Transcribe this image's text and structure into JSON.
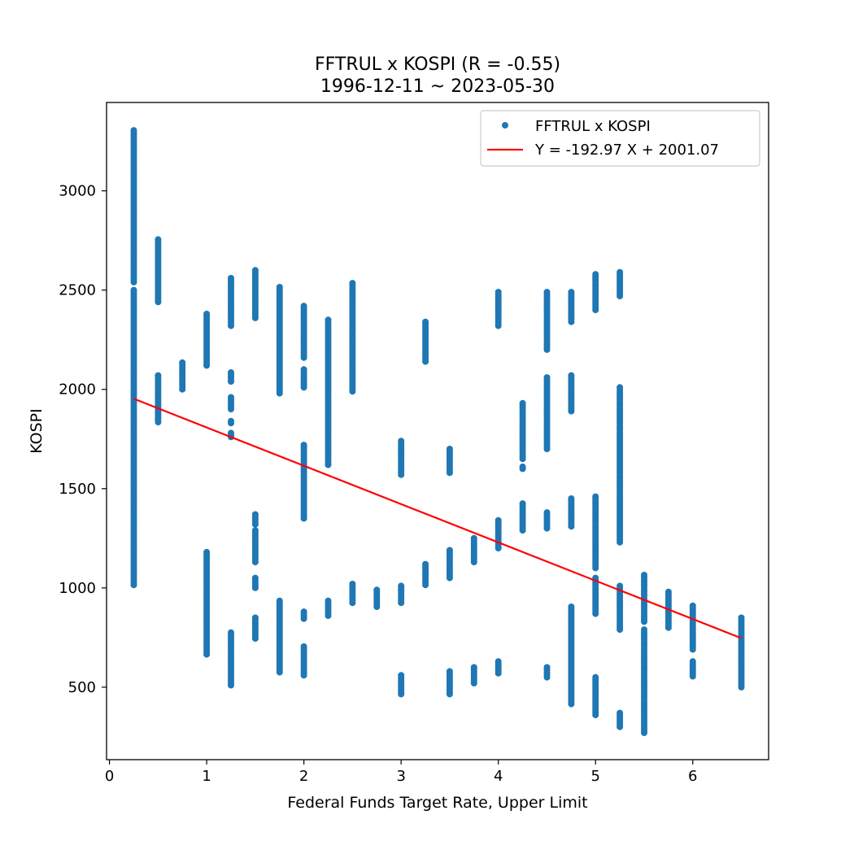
{
  "chart_data": {
    "type": "scatter",
    "title": "FFTRUL x KOSPI (R = -0.55)",
    "subtitle": "1996-12-11 ~ 2023-05-30",
    "xlabel": "Federal Funds Target Rate, Upper Limit",
    "ylabel": "KOSPI",
    "xlim": [
      -0.03,
      6.78
    ],
    "ylim": [
      135,
      3445
    ],
    "xticks": [
      0,
      1,
      2,
      3,
      4,
      5,
      6
    ],
    "yticks": [
      500,
      1000,
      1500,
      2000,
      2500,
      3000
    ],
    "legend": {
      "position": "top-right",
      "entries": [
        "FFTRUL x KOSPI",
        "Y = -192.97  X + 2001.07"
      ]
    },
    "colors": {
      "points": "#1f77b4",
      "fit": "#ff0000"
    },
    "series": [
      {
        "name": "FFTRUL x KOSPI",
        "kind": "points",
        "clusters": [
          {
            "x": 0.25,
            "y": [
              [
                1015,
                2500
              ],
              [
                2540,
                3305
              ]
            ]
          },
          {
            "x": 0.5,
            "y": [
              [
                1835,
                2070
              ],
              [
                2440,
                2755
              ]
            ]
          },
          {
            "x": 0.75,
            "y": [
              [
                2000,
                2135
              ]
            ]
          },
          {
            "x": 1.0,
            "y": [
              [
                665,
                1180
              ],
              [
                2120,
                2380
              ]
            ]
          },
          {
            "x": 1.25,
            "y": [
              [
                510,
                775
              ],
              [
                1760,
                1780
              ],
              [
                1830,
                1840
              ],
              [
                1900,
                1960
              ],
              [
                2040,
                2085
              ],
              [
                2320,
                2560
              ]
            ]
          },
          {
            "x": 1.5,
            "y": [
              [
                745,
                850
              ],
              [
                1000,
                1050
              ],
              [
                1130,
                1290
              ],
              [
                1320,
                1370
              ],
              [
                2360,
                2600
              ]
            ]
          },
          {
            "x": 1.75,
            "y": [
              [
                575,
                935
              ],
              [
                1980,
                2515
              ]
            ]
          },
          {
            "x": 2.0,
            "y": [
              [
                560,
                705
              ],
              [
                845,
                880
              ],
              [
                1350,
                1720
              ],
              [
                2010,
                2100
              ],
              [
                2160,
                2420
              ]
            ]
          },
          {
            "x": 2.25,
            "y": [
              [
                860,
                935
              ],
              [
                1620,
                2350
              ]
            ]
          },
          {
            "x": 2.5,
            "y": [
              [
                925,
                1020
              ],
              [
                1990,
                2535
              ]
            ]
          },
          {
            "x": 2.75,
            "y": [
              [
                905,
                990
              ]
            ]
          },
          {
            "x": 3.0,
            "y": [
              [
                465,
                560
              ],
              [
                925,
                1010
              ],
              [
                1570,
                1740
              ]
            ]
          },
          {
            "x": 3.25,
            "y": [
              [
                1015,
                1120
              ],
              [
                2140,
                2340
              ]
            ]
          },
          {
            "x": 3.5,
            "y": [
              [
                465,
                580
              ],
              [
                1050,
                1190
              ],
              [
                1580,
                1700
              ]
            ]
          },
          {
            "x": 3.75,
            "y": [
              [
                520,
                600
              ],
              [
                1130,
                1250
              ]
            ]
          },
          {
            "x": 4.0,
            "y": [
              [
                570,
                630
              ],
              [
                1200,
                1340
              ],
              [
                2320,
                2490
              ]
            ]
          },
          {
            "x": 4.25,
            "y": [
              [
                1290,
                1425
              ],
              [
                1600,
                1610
              ],
              [
                1650,
                1930
              ]
            ]
          },
          {
            "x": 4.5,
            "y": [
              [
                550,
                600
              ],
              [
                1300,
                1380
              ],
              [
                1700,
                2060
              ],
              [
                2200,
                2490
              ]
            ]
          },
          {
            "x": 4.75,
            "y": [
              [
                415,
                905
              ],
              [
                1310,
                1450
              ],
              [
                1890,
                2070
              ],
              [
                2340,
                2490
              ]
            ]
          },
          {
            "x": 5.0,
            "y": [
              [
                360,
                550
              ],
              [
                870,
                1050
              ],
              [
                1100,
                1460
              ],
              [
                2400,
                2580
              ]
            ]
          },
          {
            "x": 5.25,
            "y": [
              [
                300,
                370
              ],
              [
                790,
                1010
              ],
              [
                1230,
                2010
              ],
              [
                2470,
                2590
              ]
            ]
          },
          {
            "x": 5.5,
            "y": [
              [
                270,
                790
              ],
              [
                830,
                1065
              ]
            ]
          },
          {
            "x": 5.75,
            "y": [
              [
                800,
                980
              ]
            ]
          },
          {
            "x": 6.0,
            "y": [
              [
                555,
                630
              ],
              [
                690,
                910
              ]
            ]
          },
          {
            "x": 6.5,
            "y": [
              [
                500,
                850
              ]
            ]
          }
        ]
      },
      {
        "name": "Y = -192.97  X + 2001.07",
        "kind": "line",
        "x": [
          0.25,
          6.5
        ],
        "y": [
          1952.83,
          746.77
        ]
      }
    ]
  }
}
